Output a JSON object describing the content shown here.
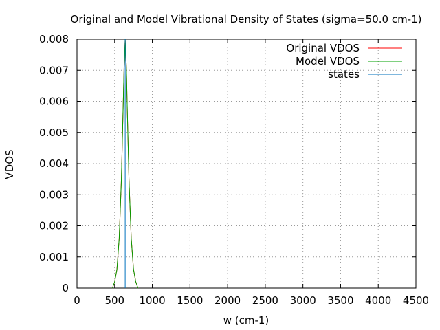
{
  "chart_data": {
    "type": "line",
    "title": "Original and Model Vibrational Density of States (sigma=50.0 cm-1)",
    "xlabel": "w (cm-1)",
    "ylabel": "VDOS",
    "xlim": [
      0,
      4500
    ],
    "ylim": [
      0,
      0.008
    ],
    "xticks": [
      0,
      500,
      1000,
      1500,
      2000,
      2500,
      3000,
      3500,
      4000,
      4500
    ],
    "xtick_labels": [
      "0",
      "500",
      "1000",
      "1500",
      "2000",
      "2500",
      "3000",
      "3500",
      "4000",
      "4500"
    ],
    "yticks": [
      0,
      0.001,
      0.002,
      0.003,
      0.004,
      0.005,
      0.006,
      0.007,
      0.008
    ],
    "ytick_labels": [
      "0",
      "0.001",
      "0.002",
      "0.003",
      "0.004",
      "0.005",
      "0.006",
      "0.007",
      "0.008"
    ],
    "grid": true,
    "legend_position": "top-right",
    "series": [
      {
        "name": "Original VDOS",
        "color": "#ff0000",
        "x": [
          470,
          500,
          530,
          560,
          590,
          610,
          625,
          640,
          655,
          670,
          690,
          720,
          750,
          780,
          810
        ],
        "y": [
          0.0,
          0.0002,
          0.0006,
          0.0016,
          0.0035,
          0.0055,
          0.0071,
          0.008,
          0.0071,
          0.0055,
          0.0035,
          0.0016,
          0.0006,
          0.0002,
          0.0
        ]
      },
      {
        "name": "Model VDOS",
        "color": "#00a000",
        "x": [
          470,
          500,
          530,
          560,
          590,
          610,
          625,
          640,
          655,
          670,
          690,
          720,
          750,
          780,
          810
        ],
        "y": [
          0.0,
          0.0002,
          0.0006,
          0.0016,
          0.0035,
          0.0055,
          0.0071,
          0.008,
          0.0071,
          0.0055,
          0.0035,
          0.0016,
          0.0006,
          0.0002,
          0.0
        ]
      },
      {
        "name": "states",
        "color": "#0072bd",
        "x": [
          640,
          640
        ],
        "y": [
          0,
          0.008
        ]
      }
    ]
  }
}
